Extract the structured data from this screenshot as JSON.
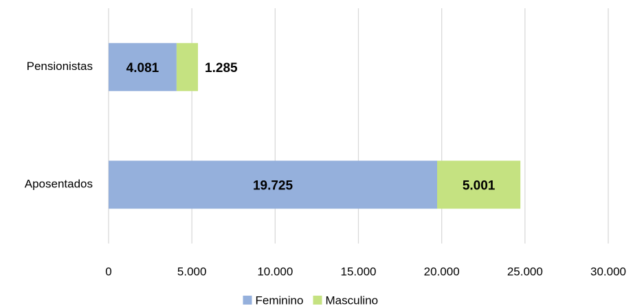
{
  "chart_data": {
    "type": "stacked-barh",
    "categories": [
      "Pensionistas",
      "Aposentados"
    ],
    "series": [
      {
        "name": "Feminino",
        "color": "#95b0dc",
        "values": [
          4081,
          19725
        ],
        "value_labels": [
          "4.081",
          "19.725"
        ]
      },
      {
        "name": "Masculino",
        "color": "#c5e281",
        "values": [
          1285,
          5001
        ],
        "value_labels": [
          "1.285",
          "5.001"
        ]
      }
    ],
    "xlim": [
      0,
      30000
    ],
    "xticks": [
      0,
      {
        "value": 5000,
        "label": "5.000"
      },
      {
        "value": 10000,
        "label": "10.000"
      },
      {
        "value": 15000,
        "label": "15.000"
      },
      {
        "value": 20000,
        "label": "20.000"
      },
      {
        "value": 25000,
        "label": "25.000"
      },
      {
        "value": 30000,
        "label": "30.000"
      }
    ],
    "grid": true,
    "legend": "bottom"
  }
}
